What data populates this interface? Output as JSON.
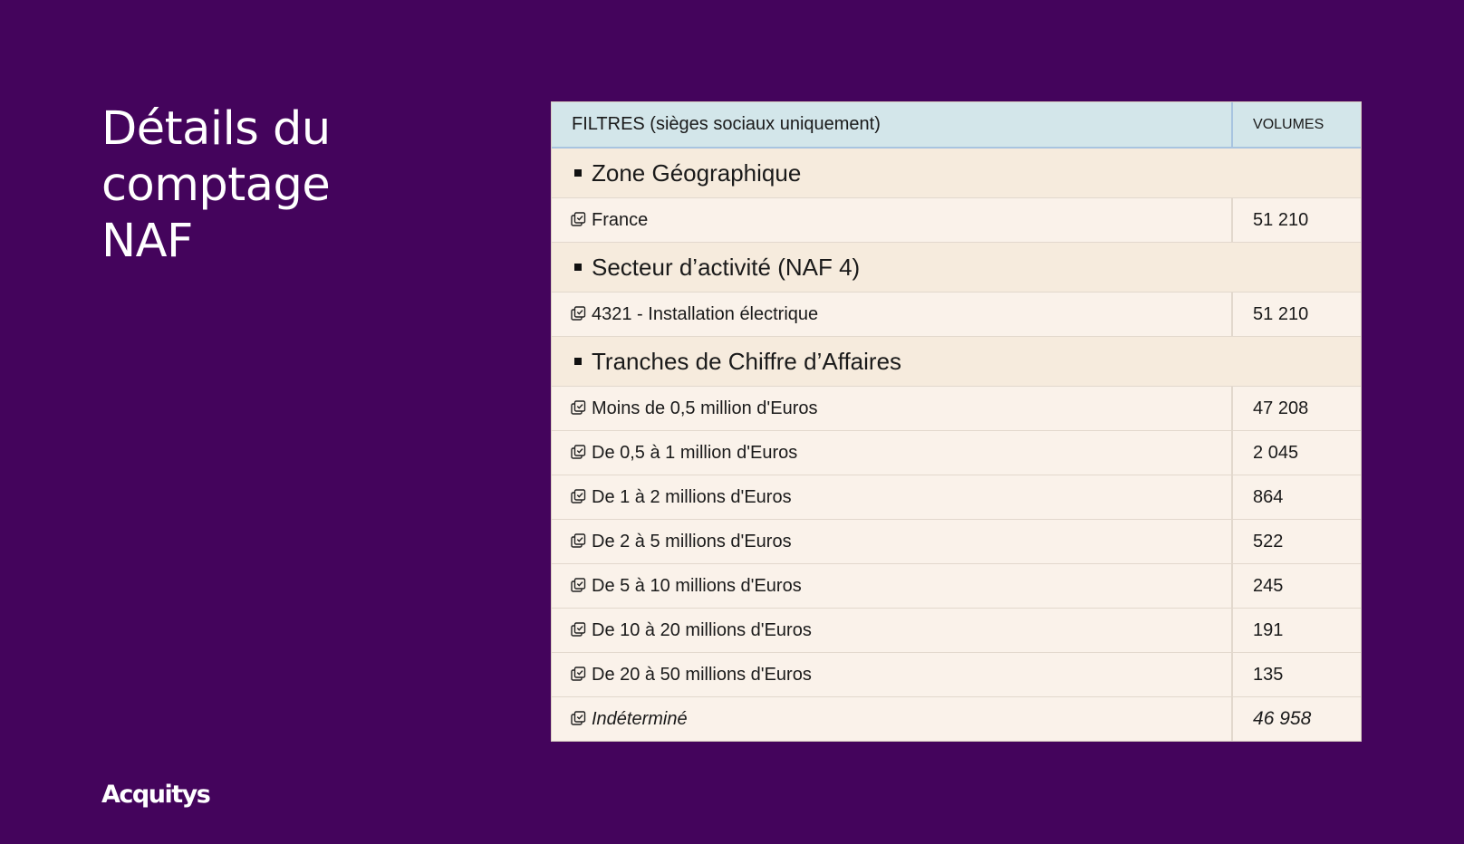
{
  "title": "Détails du comptage NAF",
  "brand": "Acquitys",
  "table": {
    "header_filters": "FILTRES (sièges sociaux uniquement)",
    "header_volumes": "VOLUMES",
    "sections": [
      {
        "label": "Zone Géographique",
        "items": [
          {
            "label": "France",
            "volume": "51 210"
          }
        ]
      },
      {
        "label": "Secteur d’activité (NAF 4)",
        "items": [
          {
            "label": "4321 - Installation électrique",
            "volume": "51 210"
          }
        ]
      },
      {
        "label": "Tranches de Chiffre d’Affaires",
        "items": [
          {
            "label": "Moins de 0,5 million d'Euros",
            "volume": "47 208"
          },
          {
            "label": "De 0,5 à 1 million d'Euros",
            "volume": "2 045"
          },
          {
            "label": "De 1 à 2 millions d'Euros",
            "volume": "864"
          },
          {
            "label": "De 2 à 5 millions d'Euros",
            "volume": "522"
          },
          {
            "label": "De 5 à 10 millions d'Euros",
            "volume": "245"
          },
          {
            "label": "De 10 à 20 millions d'Euros",
            "volume": "191"
          },
          {
            "label": "De 20 à 50 millions d'Euros",
            "volume": "135"
          },
          {
            "label": "Indéterminé",
            "volume": "46 958"
          }
        ]
      }
    ]
  },
  "colors": {
    "background": "#44045c",
    "header_bg": "#d3e6ea",
    "section_bg": "#f6ebdd",
    "row_bg": "#faf2ea"
  }
}
